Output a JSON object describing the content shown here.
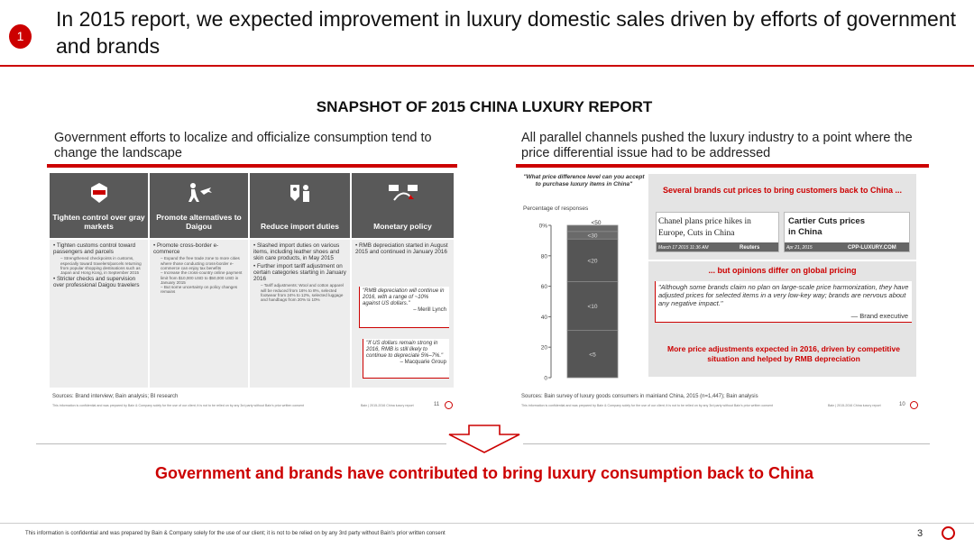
{
  "slide": {
    "step": "1",
    "title": "In 2015 report, we expected improvement in luxury domestic sales driven by efforts of government and brands",
    "snapshot_title": "SNAPSHOT OF 2015 CHINA LUXURY REPORT",
    "conclusion": "Government and brands have contributed to bring luxury consumption back to China",
    "footer": "This information is confidential and was prepared by Bain & Company solely for the use of our client; it is not to be relied on by any 3rd party without Bain's prior written consent",
    "page": "3",
    "accent_color": "#cc0000"
  },
  "left_panel": {
    "heading": "Government efforts to localize and officialize consumption tend to change the landscape",
    "columns": [
      {
        "icon": "seal-icon",
        "label": "Tighten control over gray markets",
        "bullets": [
          {
            "text": "Tighten customs control toward passengers and parcels",
            "subs": [
              "Strengthened checkpoints in customs, especially toward travelers/parcels returning from popular shopping destinations such as Japan and Hong Kong, in September 2015"
            ]
          },
          {
            "text": "Stricter checks and supervision over professional Daigou travelers",
            "subs": []
          }
        ]
      },
      {
        "icon": "person-plane-icon",
        "label": "Promote alternatives to Daigou",
        "bullets": [
          {
            "text": "Promote cross-border e-commerce",
            "subs": [
              "Expand the free trade zone to more cities where those conducting cross-border e-commerce can enjoy tax benefits",
              "Increase the cross-country online payment limit from $10,000 USD to $50,000 USD in January 2015",
              "But some uncertainty on policy changes remains"
            ]
          }
        ]
      },
      {
        "icon": "tag-person-icon",
        "label": "Reduce import duties",
        "bullets": [
          {
            "text": "Slashed import duties on various items, including leather shoes and skin care products, in May 2015",
            "subs": []
          },
          {
            "text": "Further import tariff adjustment on certain categories starting in January 2016",
            "subs": [
              "Tariff adjustments: Wool and cotton apparel will be reduced from 16% to 8%, selected footwear from 24% to 12%, selected luggage and handbags from 20% to 10%"
            ]
          }
        ]
      },
      {
        "icon": "currency-exchange-icon",
        "label": "Monetary policy",
        "bullets": [
          {
            "text": "RMB depreciation started in August 2015 and continued in January 2016",
            "subs": []
          }
        ]
      }
    ],
    "quotes": [
      {
        "text": "\"RMB depreciation will continue in 2016, with a range of ~10% against US dollars.\"",
        "source": "– Merill Lynch"
      },
      {
        "text": "\"If US dollars remain strong in 2016, RMB is still likely to continue to depreciate 5%–7%.\"",
        "source": "– Macquarie Group"
      }
    ],
    "source": "Sources: Brand interview; Bain analysis; BI research",
    "fine_print": "This information is confidential and was prepared by Bain & Company solely for the use of our client; it is not to be relied on by any 3rd party without Bain's prior written consent",
    "fine_ref": "Bain | 2015-2016 China luxury report",
    "page": "11"
  },
  "right_panel": {
    "heading": "All parallel channels pushed the luxury industry to a point where the price differential issue had to be addressed",
    "chart_question": "\"What price difference level can you accept to purchase luxury items in China\"",
    "chart_caption": "Percentage of responses",
    "box_title": "Several brands cut prices to bring customers back to China ...",
    "news": [
      {
        "headline": "Chanel plans price hikes in Europe, Cuts in China",
        "date": "March 17 2015 11:36 AM",
        "outlet": "Reuters"
      },
      {
        "headline": "Cartier Cuts prices in China",
        "date": "Apr 21, 2015",
        "outlet": "CPP-LUXURY.COM"
      }
    ],
    "opinions_title": "... but opinions differ on global pricing",
    "quote": "\"Although some brands claim no plan on large-scale price harmonization, they have adjusted prices for selected items in a very low-key way; brands are nervous about any negative impact.\"",
    "quote_source": "— Brand executive",
    "outlook": "More price adjustments expected in 2016, driven by competitive situation and helped by RMB depreciation",
    "source": "Sources: Bain survey of luxury goods consumers in mainland China, 2015 (n=1,447); Bain analysis",
    "fine_print": "This information is confidential and was prepared by Bain & Company solely for the use of our client; it is not to be relied on by any 3rd party without Bain's prior written consent",
    "fine_ref": "Bain | 2015-2016 China luxury report",
    "page": "10"
  },
  "chart_data": {
    "type": "bar",
    "stacked": true,
    "categories": [
      ""
    ],
    "series": [
      {
        "name": "<5",
        "values": [
          31
        ]
      },
      {
        "name": "<10",
        "values": [
          32
        ]
      },
      {
        "name": "<20",
        "values": [
          28
        ]
      },
      {
        "name": "<30",
        "values": [
          5
        ]
      },
      {
        "name": "<50",
        "values": [
          4
        ]
      }
    ],
    "ylim": [
      0,
      100
    ],
    "yticks": [
      "0",
      "20",
      "40",
      "60",
      "80",
      "100%"
    ],
    "ylabel": "Percentage of responses",
    "grid": false
  }
}
